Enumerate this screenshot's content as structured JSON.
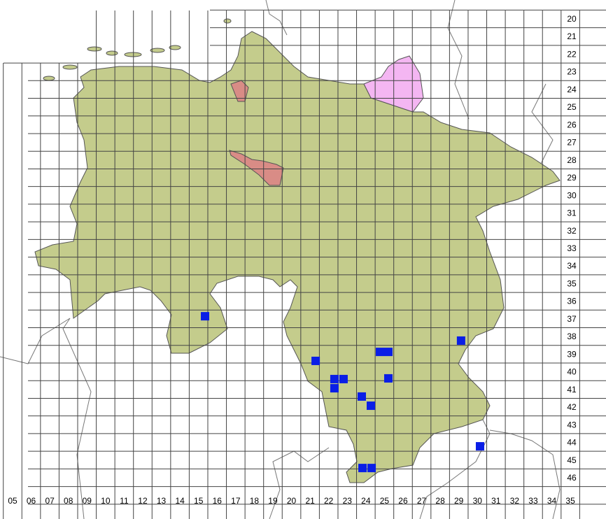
{
  "colors": {
    "state_fill": "#c4cc8c",
    "hamburg_fill": "#f4b6f2",
    "bremen_fill": "#d98c86",
    "marker": "#0a1ee6",
    "grid": "#444444",
    "border": "#555555"
  },
  "grid": {
    "columns": [
      "05",
      "06",
      "07",
      "08",
      "09",
      "10",
      "11",
      "12",
      "13",
      "14",
      "15",
      "16",
      "17",
      "18",
      "19",
      "20",
      "21",
      "22",
      "23",
      "24",
      "25",
      "26",
      "27",
      "28",
      "29",
      "30",
      "31",
      "32",
      "33",
      "34",
      "35"
    ],
    "rows": [
      "20",
      "21",
      "22",
      "23",
      "24",
      "25",
      "26",
      "27",
      "28",
      "29",
      "30",
      "31",
      "32",
      "33",
      "34",
      "35",
      "36",
      "37",
      "38",
      "39",
      "40",
      "41",
      "42",
      "43",
      "44",
      "45",
      "46"
    ]
  },
  "markers": [
    {
      "col": 15.35,
      "row": 36.85
    },
    {
      "col": 21.3,
      "row": 39.38
    },
    {
      "col": 24.76,
      "row": 38.87
    },
    {
      "col": 25.21,
      "row": 38.87
    },
    {
      "col": 29.12,
      "row": 38.23
    },
    {
      "col": 22.31,
      "row": 40.41
    },
    {
      "col": 22.8,
      "row": 40.41
    },
    {
      "col": 22.31,
      "row": 40.93
    },
    {
      "col": 25.21,
      "row": 40.37
    },
    {
      "col": 23.78,
      "row": 41.4
    },
    {
      "col": 24.27,
      "row": 41.92
    },
    {
      "col": 30.14,
      "row": 44.22
    },
    {
      "col": 23.82,
      "row": 45.45
    },
    {
      "col": 24.31,
      "row": 45.45
    }
  ]
}
